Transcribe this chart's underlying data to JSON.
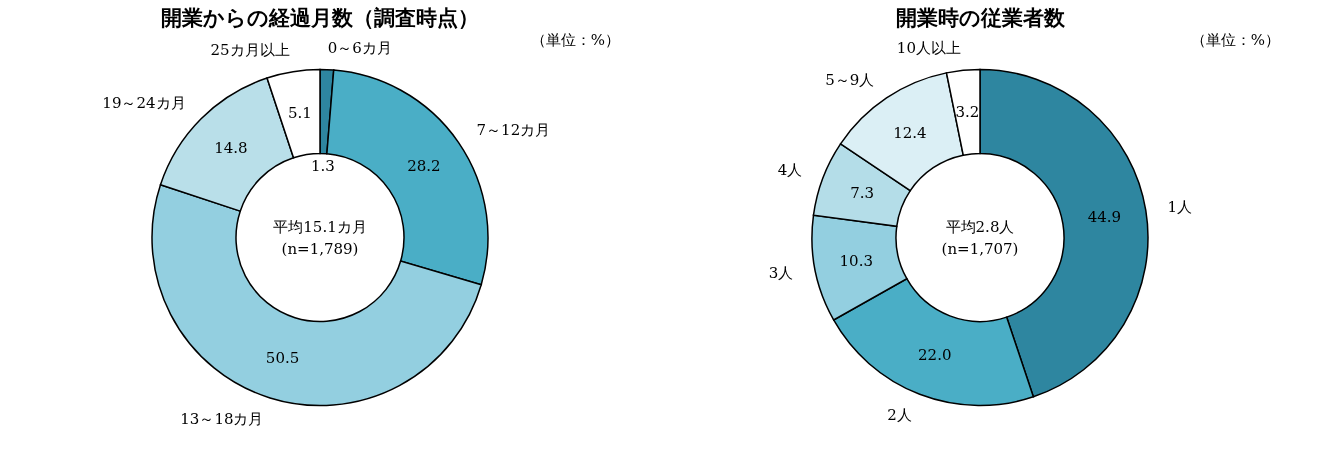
{
  "chart_data": [
    {
      "type": "donut",
      "title": "開業からの経過月数（調査時点）",
      "categories": [
        "0～6カ月",
        "7～12カ月",
        "13～18カ月",
        "19～24カ月",
        "25カ月以上"
      ],
      "values": [
        1.3,
        28.2,
        50.5,
        14.8,
        5.1
      ],
      "value_labels": [
        "1.3",
        "28.2",
        "50.5",
        "14.8",
        "5.1"
      ],
      "colors": [
        "#2e86a0",
        "#4aaec6",
        "#93cfe0",
        "#b9dfe9",
        "#ffffff"
      ],
      "annotations": [
        "平均15.1カ月",
        "(n=1,789)",
        "（単位：%）"
      ]
    },
    {
      "type": "donut",
      "title": "開業時の従業者数",
      "categories": [
        "1人",
        "2人",
        "3人",
        "4人",
        "5～9人",
        "10人以上"
      ],
      "values": [
        44.9,
        22.0,
        10.3,
        7.3,
        12.4,
        3.2
      ],
      "value_labels": [
        "44.9",
        "22.0",
        "10.3",
        "7.3",
        "12.4",
        "3.2"
      ],
      "colors": [
        "#2e86a0",
        "#4aaec6",
        "#93cfe0",
        "#b4dde8",
        "#dbeff5",
        "#ffffff"
      ],
      "annotations": [
        "平均2.8人",
        "(n=1,707)",
        "（単位：%）"
      ]
    }
  ]
}
